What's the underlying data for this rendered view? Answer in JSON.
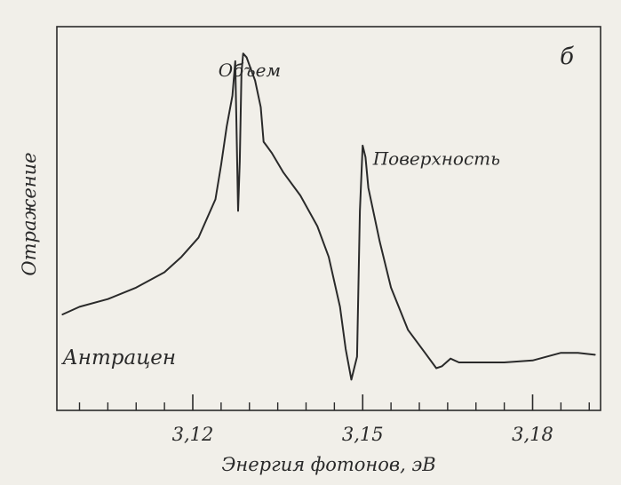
{
  "chart_data": {
    "type": "line",
    "panel_label": "б",
    "xlabel": "Энергия фотонов, эВ",
    "ylabel": "Отражение",
    "xlim": [
      3.096,
      3.192
    ],
    "ylim": [
      0,
      1
    ],
    "y_ticks_shown": false,
    "grid": false,
    "legend": "none",
    "x_ticks": [
      {
        "value": 3.12,
        "label": "3,12"
      },
      {
        "value": 3.15,
        "label": "3,15"
      },
      {
        "value": 3.18,
        "label": "3,18"
      }
    ],
    "x_minor_tick_step": 0.005,
    "annotations": [
      {
        "text": "Объем",
        "x": 3.1245,
        "y": 0.87
      },
      {
        "text": "Поверхность",
        "x": 3.1518,
        "y": 0.64
      },
      {
        "text": "Антрацен",
        "x": 3.097,
        "y": 0.12
      }
    ],
    "series": [
      {
        "color": "#2a2a2a",
        "x": [
          3.097,
          3.1,
          3.105,
          3.11,
          3.115,
          3.118,
          3.121,
          3.124,
          3.125,
          3.126,
          3.127,
          3.1275,
          3.128,
          3.1283,
          3.1286,
          3.1289,
          3.1295,
          3.13,
          3.131,
          3.132,
          3.1325,
          3.133,
          3.134,
          3.136,
          3.139,
          3.142,
          3.144,
          3.146,
          3.147,
          3.148,
          3.149,
          3.1495,
          3.15,
          3.1505,
          3.151,
          3.153,
          3.155,
          3.158,
          3.161,
          3.163,
          3.164,
          3.1655,
          3.167,
          3.17,
          3.175,
          3.18,
          3.185,
          3.188,
          3.191
        ],
        "y": [
          0.25,
          0.27,
          0.29,
          0.32,
          0.36,
          0.4,
          0.45,
          0.55,
          0.64,
          0.74,
          0.82,
          0.91,
          0.52,
          0.65,
          0.88,
          0.93,
          0.92,
          0.9,
          0.86,
          0.79,
          0.7,
          0.69,
          0.67,
          0.62,
          0.56,
          0.48,
          0.4,
          0.27,
          0.16,
          0.08,
          0.14,
          0.52,
          0.69,
          0.66,
          0.58,
          0.44,
          0.32,
          0.21,
          0.15,
          0.11,
          0.115,
          0.135,
          0.125,
          0.125,
          0.125,
          0.13,
          0.15,
          0.15,
          0.145
        ]
      }
    ]
  }
}
